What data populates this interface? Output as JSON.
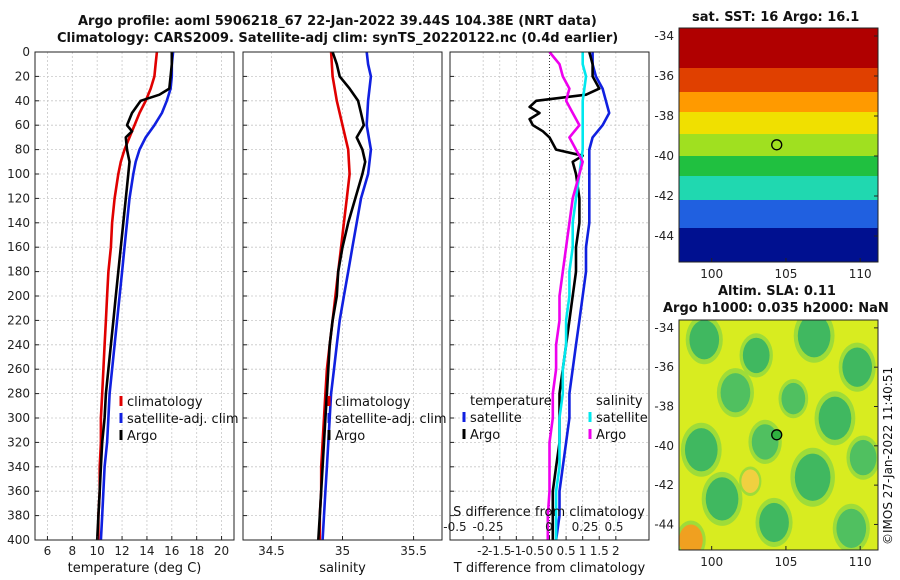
{
  "titles": {
    "line1": "Argo profile: aoml 5906218_67 22-Jan-2022 39.44S 104.38E (NRT data)",
    "line2": "Climatology: CARS2009. Satellite-adj clim: synTS_20220122.nc (0.4d earlier)",
    "sst": "sat. SST: 16 Argo: 16.1",
    "sla1": "Altim. SLA: 0.11",
    "sla2": "Argo h1000: 0.035 h2000: NaN"
  },
  "side_label": "©IMOS 27-Jan-2022 11:40:51",
  "colors": {
    "climatology": "#e00000",
    "satellite": "#1020e0",
    "argo": "#000000",
    "sat_s": "#00e8ee",
    "argo_s": "#ee00ee"
  },
  "chart_data": [
    {
      "type": "line",
      "id": "temperature",
      "xlabel": "temperature (deg C)",
      "xlim": [
        5,
        21
      ],
      "xticks": [
        6,
        8,
        10,
        12,
        14,
        16,
        18,
        20
      ],
      "ylim": [
        400,
        0
      ],
      "yticks": [
        0,
        20,
        40,
        60,
        80,
        100,
        120,
        140,
        160,
        180,
        200,
        220,
        240,
        260,
        280,
        300,
        320,
        340,
        360,
        380,
        400
      ],
      "legend": [
        "climatology",
        "satellite-adj. clim",
        "Argo"
      ],
      "series": [
        {
          "name": "climatology",
          "color": "#e00000",
          "depth": [
            0,
            10,
            20,
            30,
            40,
            50,
            60,
            70,
            80,
            90,
            100,
            120,
            140,
            160,
            180,
            200,
            220,
            240,
            260,
            280,
            300,
            320,
            340,
            360,
            380,
            400
          ],
          "values": [
            14.8,
            14.7,
            14.6,
            14.3,
            13.9,
            13.4,
            13.0,
            12.6,
            12.2,
            11.9,
            11.7,
            11.4,
            11.2,
            11.1,
            10.9,
            10.8,
            10.7,
            10.6,
            10.5,
            10.4,
            10.3,
            10.3,
            10.2,
            10.2,
            10.1,
            10.1
          ]
        },
        {
          "name": "satellite-adj. clim",
          "color": "#1020e0",
          "depth": [
            0,
            10,
            20,
            30,
            40,
            50,
            60,
            70,
            80,
            90,
            100,
            120,
            140,
            160,
            180,
            200,
            220,
            240,
            260,
            280,
            300,
            320,
            340,
            360,
            380,
            400
          ],
          "values": [
            16.1,
            16.0,
            16.0,
            15.9,
            15.6,
            15.2,
            14.6,
            13.9,
            13.4,
            13.1,
            12.9,
            12.6,
            12.4,
            12.2,
            12.0,
            11.8,
            11.6,
            11.4,
            11.2,
            11.0,
            10.9,
            10.8,
            10.6,
            10.5,
            10.4,
            10.3
          ]
        },
        {
          "name": "Argo",
          "color": "#000000",
          "depth": [
            0,
            10,
            20,
            30,
            35,
            40,
            50,
            60,
            65,
            70,
            80,
            90,
            100,
            120,
            140,
            160,
            180,
            200,
            220,
            240,
            260,
            280,
            300,
            320,
            340,
            360,
            380,
            400
          ],
          "values": [
            16.0,
            16.0,
            15.9,
            15.8,
            15.0,
            13.5,
            12.8,
            12.4,
            12.8,
            12.3,
            12.4,
            12.6,
            12.5,
            12.3,
            12.1,
            11.9,
            11.7,
            11.5,
            11.3,
            11.1,
            10.9,
            10.7,
            10.6,
            10.4,
            10.3,
            10.2,
            10.1,
            10.0
          ]
        }
      ]
    },
    {
      "type": "line",
      "id": "salinity",
      "xlabel": "salinity",
      "xlim": [
        34.3,
        35.7
      ],
      "xticks": [
        34.5,
        35,
        35.5
      ],
      "ylim": [
        400,
        0
      ],
      "legend": [
        "climatology",
        "satellite-adj. clim",
        "Argo"
      ],
      "series": [
        {
          "name": "climatology",
          "color": "#e00000",
          "depth": [
            0,
            20,
            40,
            60,
            80,
            100,
            120,
            140,
            160,
            180,
            200,
            220,
            240,
            260,
            280,
            300,
            320,
            340,
            360,
            380,
            400
          ],
          "values": [
            34.92,
            34.93,
            34.96,
            35.0,
            35.04,
            35.05,
            35.03,
            35.01,
            34.99,
            34.97,
            34.95,
            34.93,
            34.91,
            34.89,
            34.88,
            34.87,
            34.86,
            34.85,
            34.85,
            34.84,
            34.84
          ]
        },
        {
          "name": "satellite-adj. clim",
          "color": "#1020e0",
          "depth": [
            0,
            10,
            20,
            40,
            60,
            80,
            100,
            120,
            140,
            160,
            180,
            200,
            220,
            240,
            260,
            280,
            300,
            320,
            340,
            360,
            380,
            400
          ],
          "values": [
            35.17,
            35.18,
            35.2,
            35.18,
            35.17,
            35.2,
            35.18,
            35.13,
            35.1,
            35.07,
            35.04,
            35.01,
            34.98,
            34.96,
            34.94,
            34.92,
            34.91,
            34.9,
            34.89,
            34.88,
            34.87,
            34.86
          ]
        },
        {
          "name": "Argo",
          "color": "#000000",
          "depth": [
            0,
            10,
            20,
            30,
            40,
            50,
            60,
            70,
            80,
            90,
            100,
            120,
            140,
            160,
            180,
            200,
            220,
            240,
            260,
            280,
            300,
            320,
            340,
            360,
            380,
            400
          ],
          "values": [
            34.93,
            34.96,
            34.98,
            35.05,
            35.11,
            35.13,
            35.15,
            35.1,
            35.14,
            35.16,
            35.14,
            35.09,
            35.04,
            35.0,
            34.97,
            34.96,
            34.93,
            34.91,
            34.9,
            34.89,
            34.88,
            34.87,
            34.86,
            34.85,
            34.84,
            34.83
          ]
        }
      ]
    },
    {
      "type": "line",
      "id": "differences",
      "xlabel": "T difference from climatology",
      "xlim": [
        -3,
        3
      ],
      "xticks": [
        -2,
        -1.5,
        -1,
        -0.5,
        0,
        0.5,
        1,
        1.5,
        2
      ],
      "xticklabels": [
        "-2",
        "-1.5",
        "-1",
        "-0.5",
        "0",
        "0.5",
        "1",
        "1.5",
        "2"
      ],
      "top_xlabel": "S difference from climatology",
      "top_xticks": [
        "-0.5",
        "-0.25",
        "0",
        "0.25",
        "0.5"
      ],
      "ylim": [
        400,
        0
      ],
      "legend_temperature": {
        "title": "temperature",
        "items": [
          "satellite",
          "Argo"
        ]
      },
      "legend_salinity": {
        "title": "salinity",
        "items": [
          "satellite",
          "Argo"
        ]
      },
      "series": [
        {
          "name": "temperature satellite",
          "color": "#1020e0",
          "depth": [
            0,
            10,
            20,
            30,
            40,
            50,
            60,
            70,
            80,
            90,
            100,
            120,
            140,
            160,
            180,
            200,
            220,
            240,
            260,
            280,
            300,
            320,
            340,
            360,
            380,
            400
          ],
          "values": [
            1.3,
            1.3,
            1.4,
            1.6,
            1.7,
            1.8,
            1.6,
            1.3,
            1.2,
            1.2,
            1.2,
            1.2,
            1.2,
            1.1,
            1.1,
            1.0,
            0.9,
            0.8,
            0.7,
            0.6,
            0.6,
            0.5,
            0.4,
            0.3,
            0.3,
            0.2
          ]
        },
        {
          "name": "temperature Argo",
          "color": "#000000",
          "depth": [
            0,
            10,
            20,
            30,
            35,
            40,
            45,
            50,
            55,
            60,
            65,
            70,
            80,
            85,
            90,
            100,
            120,
            140,
            160,
            180,
            200,
            220,
            240,
            260,
            280,
            300,
            320,
            340,
            360,
            380,
            400
          ],
          "values": [
            1.2,
            1.3,
            1.3,
            1.5,
            1.1,
            -0.4,
            -0.6,
            -0.3,
            -0.6,
            -0.5,
            -0.2,
            0.0,
            0.2,
            1.0,
            0.7,
            0.8,
            0.9,
            0.9,
            0.8,
            0.8,
            0.7,
            0.6,
            0.5,
            0.4,
            0.3,
            0.3,
            0.3,
            0.2,
            0.1,
            0.1,
            0.1
          ]
        },
        {
          "name": "salinity satellite",
          "color": "#00e8ee",
          "depth": [
            0,
            10,
            20,
            40,
            60,
            80,
            100,
            120,
            140,
            160,
            180,
            200,
            220,
            240,
            260,
            280,
            300,
            320,
            340,
            360,
            380,
            400
          ],
          "values": [
            1.0,
            1.0,
            1.1,
            1.0,
            1.0,
            1.0,
            0.9,
            0.8,
            0.7,
            0.7,
            0.6,
            0.6,
            0.5,
            0.5,
            0.4,
            0.4,
            0.3,
            0.3,
            0.3,
            0.2,
            0.2,
            0.2
          ]
        },
        {
          "name": "salinity Argo",
          "color": "#ee00ee",
          "depth": [
            0,
            10,
            20,
            30,
            40,
            50,
            60,
            70,
            80,
            90,
            100,
            120,
            140,
            160,
            180,
            200,
            220,
            240,
            260,
            280,
            300,
            320,
            340,
            360,
            380,
            400
          ],
          "values": [
            0.0,
            0.3,
            0.4,
            0.6,
            0.5,
            0.7,
            0.9,
            0.6,
            0.8,
            1.0,
            0.9,
            0.7,
            0.6,
            0.5,
            0.4,
            0.3,
            0.3,
            0.2,
            0.2,
            0.1,
            0.1,
            0.0,
            0.0,
            0.0,
            -0.05,
            -0.05
          ]
        }
      ]
    },
    {
      "type": "heatmap",
      "id": "sst_map",
      "title": "sat. SST: 16 Argo: 16.1",
      "xticks": [
        100,
        105,
        110
      ],
      "yticks": [
        -34,
        -36,
        -38,
        -40,
        -42,
        -44
      ],
      "xlim": [
        97.8,
        111.2
      ],
      "ylim": [
        -45.3,
        -33.6
      ],
      "argo_position": {
        "lon": 104.38,
        "lat": -39.44
      },
      "color_bands": [
        {
          "lat_top": -33.6,
          "lat_bottom": -36.2,
          "color": "#b00000"
        },
        {
          "lat_top": -36.2,
          "lat_bottom": -37.4,
          "color": "#e04000"
        },
        {
          "lat_top": -37.4,
          "lat_bottom": -38.4,
          "color": "#ff9a00"
        },
        {
          "lat_top": -38.4,
          "lat_bottom": -39.5,
          "color": "#f0e000"
        },
        {
          "lat_top": -39.5,
          "lat_bottom": -40.6,
          "color": "#a0e020"
        },
        {
          "lat_top": -40.6,
          "lat_bottom": -41.6,
          "color": "#20c040"
        },
        {
          "lat_top": -41.6,
          "lat_bottom": -42.8,
          "color": "#20d8b0"
        },
        {
          "lat_top": -42.8,
          "lat_bottom": -44.2,
          "color": "#2060e0"
        },
        {
          "lat_top": -44.2,
          "lat_bottom": -45.3,
          "color": "#001090"
        }
      ]
    },
    {
      "type": "heatmap",
      "id": "sla_map",
      "title": "Altim. SLA: 0.11",
      "xticks": [
        100,
        105,
        110
      ],
      "yticks": [
        -34,
        -36,
        -38,
        -40,
        -42,
        -44
      ],
      "xlim": [
        97.8,
        111.2
      ],
      "ylim": [
        -45.3,
        -33.6
      ],
      "argo_position": {
        "lon": 104.38,
        "lat": -39.44
      },
      "background_color": "#d8ec20",
      "blobs": [
        {
          "lon": 99.5,
          "lat": -34.6,
          "r": 1.0,
          "color": "#40b860"
        },
        {
          "lon": 103.0,
          "lat": -35.4,
          "r": 0.9,
          "color": "#40b860"
        },
        {
          "lon": 106.9,
          "lat": -34.4,
          "r": 1.1,
          "color": "#40b860"
        },
        {
          "lon": 109.8,
          "lat": -36.0,
          "r": 1.0,
          "color": "#40b860"
        },
        {
          "lon": 101.6,
          "lat": -37.3,
          "r": 1.0,
          "color": "#50c060"
        },
        {
          "lon": 105.5,
          "lat": -37.6,
          "r": 0.8,
          "color": "#50c060"
        },
        {
          "lon": 108.3,
          "lat": -38.6,
          "r": 1.1,
          "color": "#40b860"
        },
        {
          "lon": 99.3,
          "lat": -40.2,
          "r": 1.1,
          "color": "#40b860"
        },
        {
          "lon": 103.6,
          "lat": -39.8,
          "r": 0.9,
          "color": "#50c060"
        },
        {
          "lon": 106.8,
          "lat": -41.6,
          "r": 1.2,
          "color": "#40b860"
        },
        {
          "lon": 110.2,
          "lat": -40.6,
          "r": 0.9,
          "color": "#50c060"
        },
        {
          "lon": 100.7,
          "lat": -42.7,
          "r": 1.1,
          "color": "#40b860"
        },
        {
          "lon": 104.2,
          "lat": -43.9,
          "r": 1.0,
          "color": "#40b860"
        },
        {
          "lon": 109.4,
          "lat": -44.2,
          "r": 1.0,
          "color": "#50c060"
        },
        {
          "lon": 98.6,
          "lat": -44.8,
          "r": 0.8,
          "color": "#f0a020"
        },
        {
          "lon": 102.6,
          "lat": -41.8,
          "r": 0.6,
          "color": "#f0d040"
        }
      ]
    }
  ]
}
